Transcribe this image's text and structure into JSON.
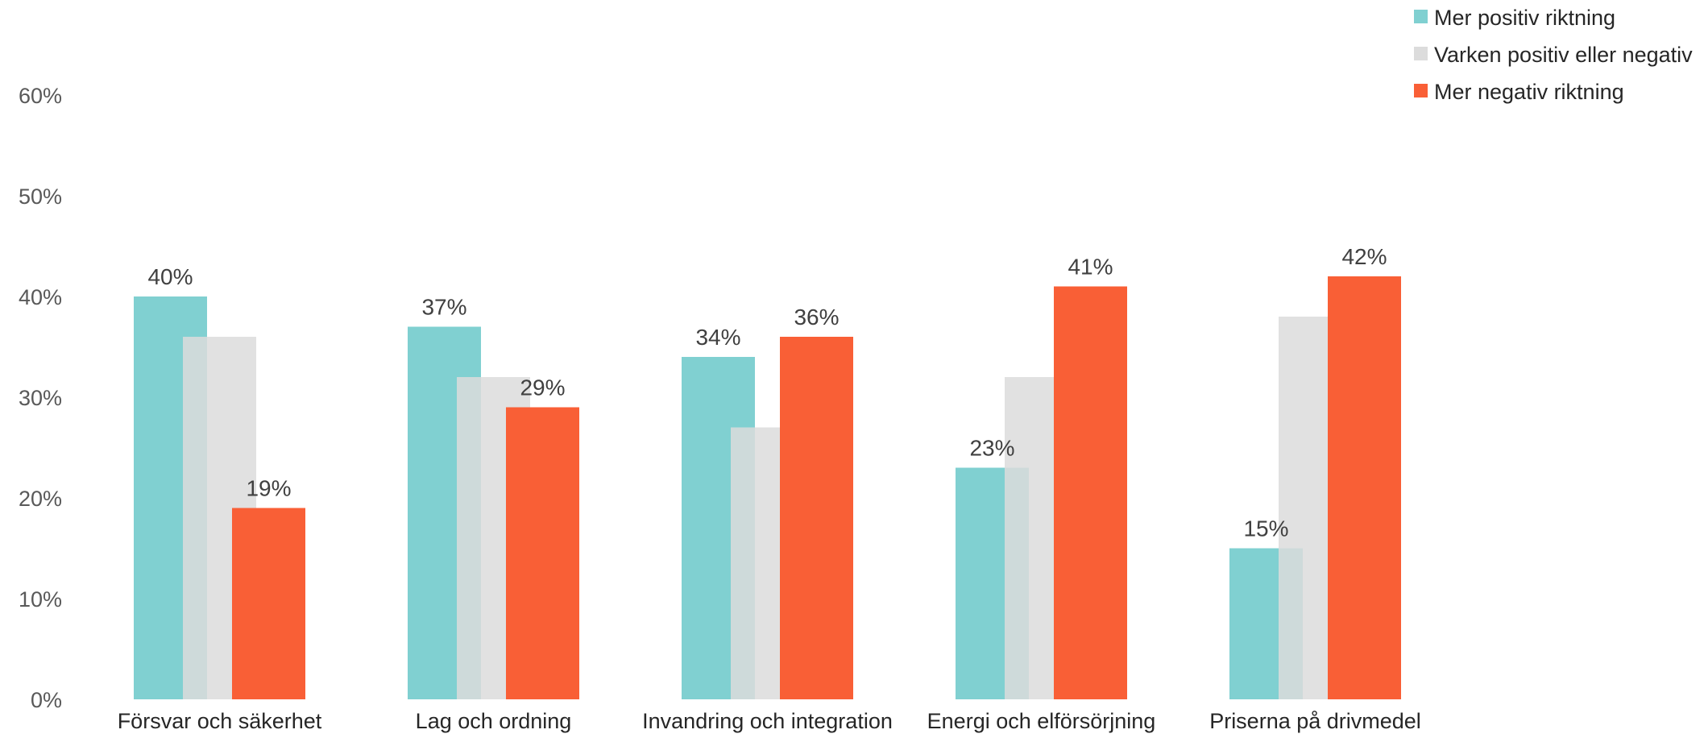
{
  "chart_data": {
    "type": "bar",
    "categories": [
      "Försvar och säkerhet",
      "Lag och ordning",
      "Invandring och integration",
      "Energi och elförsörjning",
      "Priserna på drivmedel"
    ],
    "series": [
      {
        "name": "Mer positiv riktning",
        "color": "#80D0D1",
        "values": [
          40,
          37,
          34,
          23,
          15
        ],
        "data_labels": [
          "40%",
          "37%",
          "34%",
          "23%",
          "15%"
        ]
      },
      {
        "name": "Varken positiv eller negativ",
        "color": "#DCDCDC",
        "values": [
          36,
          32,
          27,
          32,
          38
        ],
        "data_labels": [
          "",
          "",
          "",
          "",
          ""
        ]
      },
      {
        "name": "Mer negativ riktning",
        "color": "#F95F36",
        "values": [
          19,
          29,
          36,
          41,
          42
        ],
        "data_labels": [
          "19%",
          "29%",
          "36%",
          "41%",
          "42%"
        ]
      }
    ],
    "y_ticks": [
      "0%",
      "10%",
      "20%",
      "30%",
      "40%",
      "50%",
      "60%"
    ],
    "ylim": [
      0,
      60
    ],
    "grid": false,
    "legend_position": "top-right",
    "title": "",
    "xlabel": "",
    "ylabel": ""
  }
}
